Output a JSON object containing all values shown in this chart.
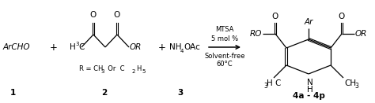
{
  "background_color": "#ffffff",
  "fig_width": 4.74,
  "fig_height": 1.31,
  "dpi": 100,
  "label1": "1",
  "label2": "2",
  "label3": "3",
  "label4": "4a - 4p",
  "reagent1": "MTSA",
  "reagent2": "5 mol %",
  "reagent3": "Solvent-free",
  "reagent4": "60°C",
  "rgroup": "R = CH",
  "rgroup_sub": "3",
  "rgroup_mid": "  Or  C",
  "rgroup_sub2": "2",
  "rgroup_end": "H",
  "rgroup_sub3": "5",
  "text_ArCHO": "ArCHO",
  "text_NH4OAc": "NH",
  "text_4": "4",
  "text_OAc": "OAc",
  "text_N": "N",
  "text_H": "H",
  "text_Ar": "Ar",
  "text_RO": "RO",
  "text_OR": "OR",
  "text_H3C_left": "H",
  "text_3": "3",
  "text_C": "C",
  "text_CH3_right": "CH",
  "text_3r": "3",
  "text_O": "O"
}
